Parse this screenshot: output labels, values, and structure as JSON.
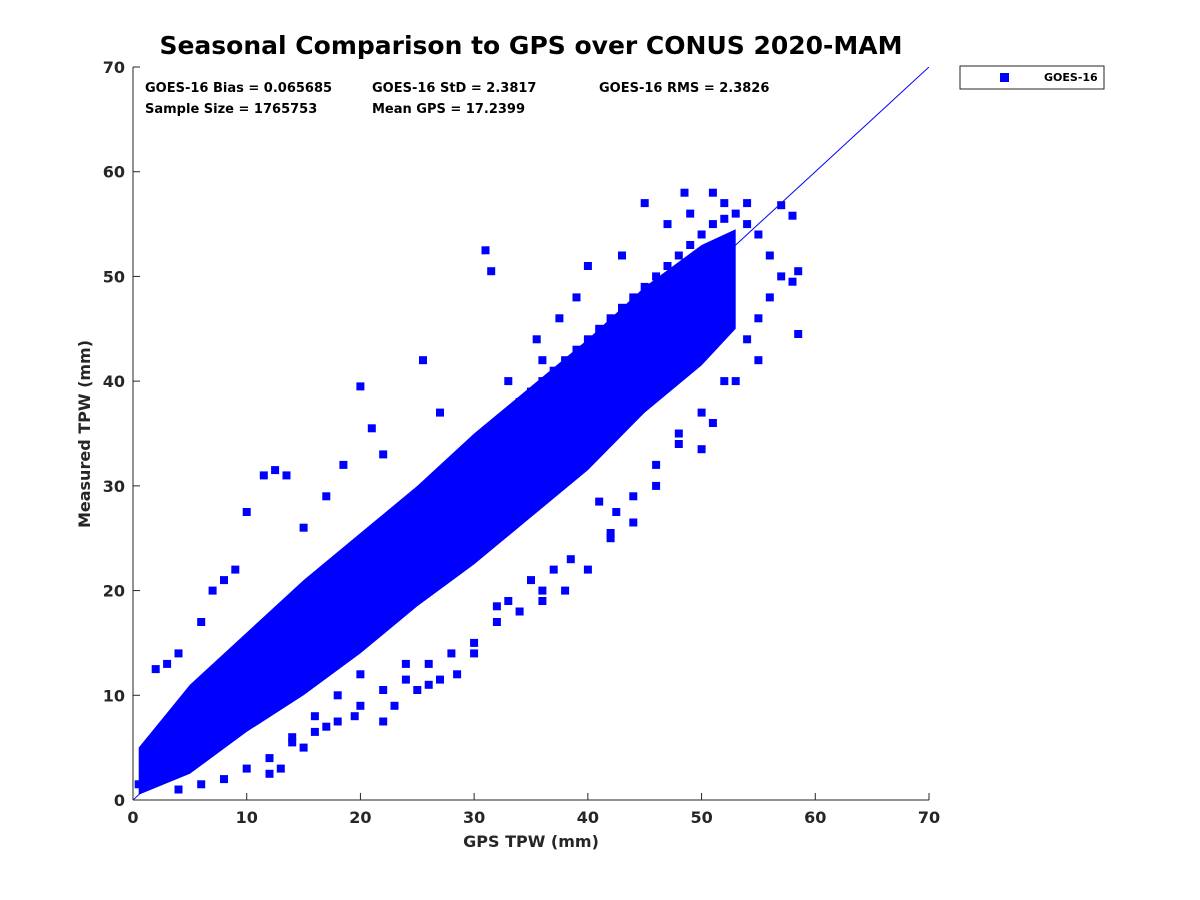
{
  "chart_data": {
    "type": "scatter",
    "title": "Seasonal Comparison to GPS over CONUS 2020-MAM",
    "xlabel": "GPS TPW (mm)",
    "ylabel": "Measured TPW (mm)",
    "xlim": [
      0,
      70
    ],
    "ylim": [
      0,
      70
    ],
    "xticks": [
      "0",
      "10",
      "20",
      "30",
      "40",
      "50",
      "60",
      "70"
    ],
    "yticks": [
      "0",
      "10",
      "20",
      "30",
      "40",
      "50",
      "60",
      "70"
    ],
    "legend": {
      "placement": "outside-top-right",
      "entries": [
        "GOES-16"
      ]
    },
    "series": [
      {
        "name": "GOES-16",
        "color": "#0000ff",
        "marker": "square",
        "core_band": {
          "x": [
            0.5,
            5,
            10,
            15,
            20,
            25,
            30,
            35,
            40,
            45,
            50,
            53
          ],
          "y_low": [
            0.5,
            2.5,
            6.5,
            10,
            14,
            18.5,
            22.5,
            27,
            31.5,
            37,
            41.5,
            45
          ],
          "y_high": [
            5,
            11,
            16,
            21,
            25.5,
            30,
            35,
            39.5,
            44,
            49,
            53,
            54.5
          ]
        },
        "points": [
          [
            0.5,
            1.5
          ],
          [
            1,
            3
          ],
          [
            1.5,
            2
          ],
          [
            2,
            5
          ],
          [
            3,
            6
          ],
          [
            4,
            7
          ],
          [
            5,
            8
          ],
          [
            6,
            9.5
          ],
          [
            7,
            10
          ],
          [
            8,
            12
          ],
          [
            9,
            13
          ],
          [
            10,
            14
          ],
          [
            11,
            15
          ],
          [
            12,
            16
          ],
          [
            13,
            17.5
          ],
          [
            14,
            18.5
          ],
          [
            15,
            19
          ],
          [
            16,
            20
          ],
          [
            17,
            21
          ],
          [
            18,
            22
          ],
          [
            19,
            23
          ],
          [
            20,
            24
          ],
          [
            21,
            25
          ],
          [
            22,
            26
          ],
          [
            23,
            27
          ],
          [
            24,
            28
          ],
          [
            25,
            29
          ],
          [
            26,
            30
          ],
          [
            27,
            31
          ],
          [
            28,
            32
          ],
          [
            29,
            33
          ],
          [
            30,
            34
          ],
          [
            31,
            35
          ],
          [
            32,
            36
          ],
          [
            33,
            37
          ],
          [
            34,
            38
          ],
          [
            35,
            39
          ],
          [
            36,
            40
          ],
          [
            37,
            41
          ],
          [
            38,
            42
          ],
          [
            39,
            43
          ],
          [
            40,
            44
          ],
          [
            41,
            45
          ],
          [
            42,
            46
          ],
          [
            43,
            47
          ],
          [
            44,
            48
          ],
          [
            45,
            49
          ],
          [
            46,
            50
          ],
          [
            47,
            51
          ],
          [
            48,
            52
          ],
          [
            49,
            53
          ],
          [
            50,
            54
          ],
          [
            51,
            55
          ],
          [
            52,
            55.5
          ],
          [
            53,
            56
          ],
          [
            54,
            55
          ],
          [
            55,
            54
          ],
          [
            56,
            52
          ],
          [
            57,
            50
          ],
          [
            58.5,
            50.5
          ],
          [
            58,
            49.5
          ],
          [
            58.5,
            44.5
          ],
          [
            57,
            56.8
          ],
          [
            58,
            55.8
          ],
          [
            56,
            48
          ],
          [
            55,
            46
          ],
          [
            54,
            44
          ],
          [
            52,
            40
          ],
          [
            50,
            37
          ],
          [
            48,
            34
          ],
          [
            46,
            32
          ],
          [
            44,
            29
          ],
          [
            42,
            25
          ],
          [
            40,
            22
          ],
          [
            38,
            20
          ],
          [
            36,
            19
          ],
          [
            34,
            18
          ],
          [
            32,
            17
          ],
          [
            30,
            15
          ],
          [
            28,
            14
          ],
          [
            26,
            13
          ],
          [
            24,
            11.5
          ],
          [
            22,
            10.5
          ],
          [
            20,
            9
          ],
          [
            18,
            7.5
          ],
          [
            16,
            6.5
          ],
          [
            14,
            5.5
          ],
          [
            12,
            4
          ],
          [
            10,
            3
          ],
          [
            8,
            2
          ],
          [
            6,
            1.5
          ],
          [
            4,
            1
          ],
          [
            12,
            2.5
          ],
          [
            10,
            27.5
          ],
          [
            11.5,
            31
          ],
          [
            12.5,
            31.5
          ],
          [
            13.5,
            31
          ],
          [
            20,
            39.5
          ],
          [
            22,
            33
          ],
          [
            21,
            35.5
          ],
          [
            25.5,
            42
          ],
          [
            27,
            37
          ],
          [
            31,
            52.5
          ],
          [
            31.5,
            50.5
          ],
          [
            40,
            51
          ],
          [
            45,
            57
          ],
          [
            48.5,
            58
          ],
          [
            51,
            58
          ],
          [
            6,
            17
          ],
          [
            7,
            20
          ],
          [
            8,
            21
          ],
          [
            9,
            22
          ],
          [
            15,
            26
          ],
          [
            17,
            29
          ],
          [
            18.5,
            32
          ],
          [
            3,
            13
          ],
          [
            2,
            12.5
          ],
          [
            4,
            14
          ],
          [
            32,
            18.5
          ],
          [
            33,
            19
          ],
          [
            36,
            20
          ],
          [
            41,
            28.5
          ],
          [
            42.5,
            27.5
          ],
          [
            42,
            25.5
          ],
          [
            48,
            35
          ],
          [
            50,
            33.5
          ],
          [
            51,
            36
          ],
          [
            53,
            40
          ],
          [
            55,
            42
          ],
          [
            46,
            30
          ],
          [
            44,
            26.5
          ],
          [
            38.5,
            23
          ],
          [
            37,
            22
          ],
          [
            35,
            21
          ],
          [
            26,
            11
          ],
          [
            28.5,
            12
          ],
          [
            30,
            14
          ],
          [
            24,
            13
          ],
          [
            20,
            12
          ],
          [
            18,
            10
          ],
          [
            16,
            8
          ],
          [
            14,
            6
          ],
          [
            22,
            7.5
          ],
          [
            23,
            9
          ],
          [
            25,
            10.5
          ],
          [
            27,
            11.5
          ],
          [
            19.5,
            8
          ],
          [
            13,
            3
          ],
          [
            15,
            5
          ],
          [
            17,
            7
          ],
          [
            35.5,
            44
          ],
          [
            36,
            42
          ],
          [
            33,
            40
          ],
          [
            37.5,
            46
          ],
          [
            39,
            48
          ],
          [
            43,
            52
          ],
          [
            47,
            55
          ],
          [
            49,
            56
          ],
          [
            52,
            57
          ],
          [
            54,
            57
          ]
        ]
      }
    ],
    "diagonal_line": {
      "from": [
        0,
        0
      ],
      "to": [
        70,
        70
      ]
    },
    "annotations": [
      "GOES-16 Bias = 0.065685",
      "GOES-16 StD = 2.3817",
      "GOES-16 RMS = 2.3826",
      "Sample Size = 1765753",
      "Mean GPS = 17.2399"
    ]
  }
}
